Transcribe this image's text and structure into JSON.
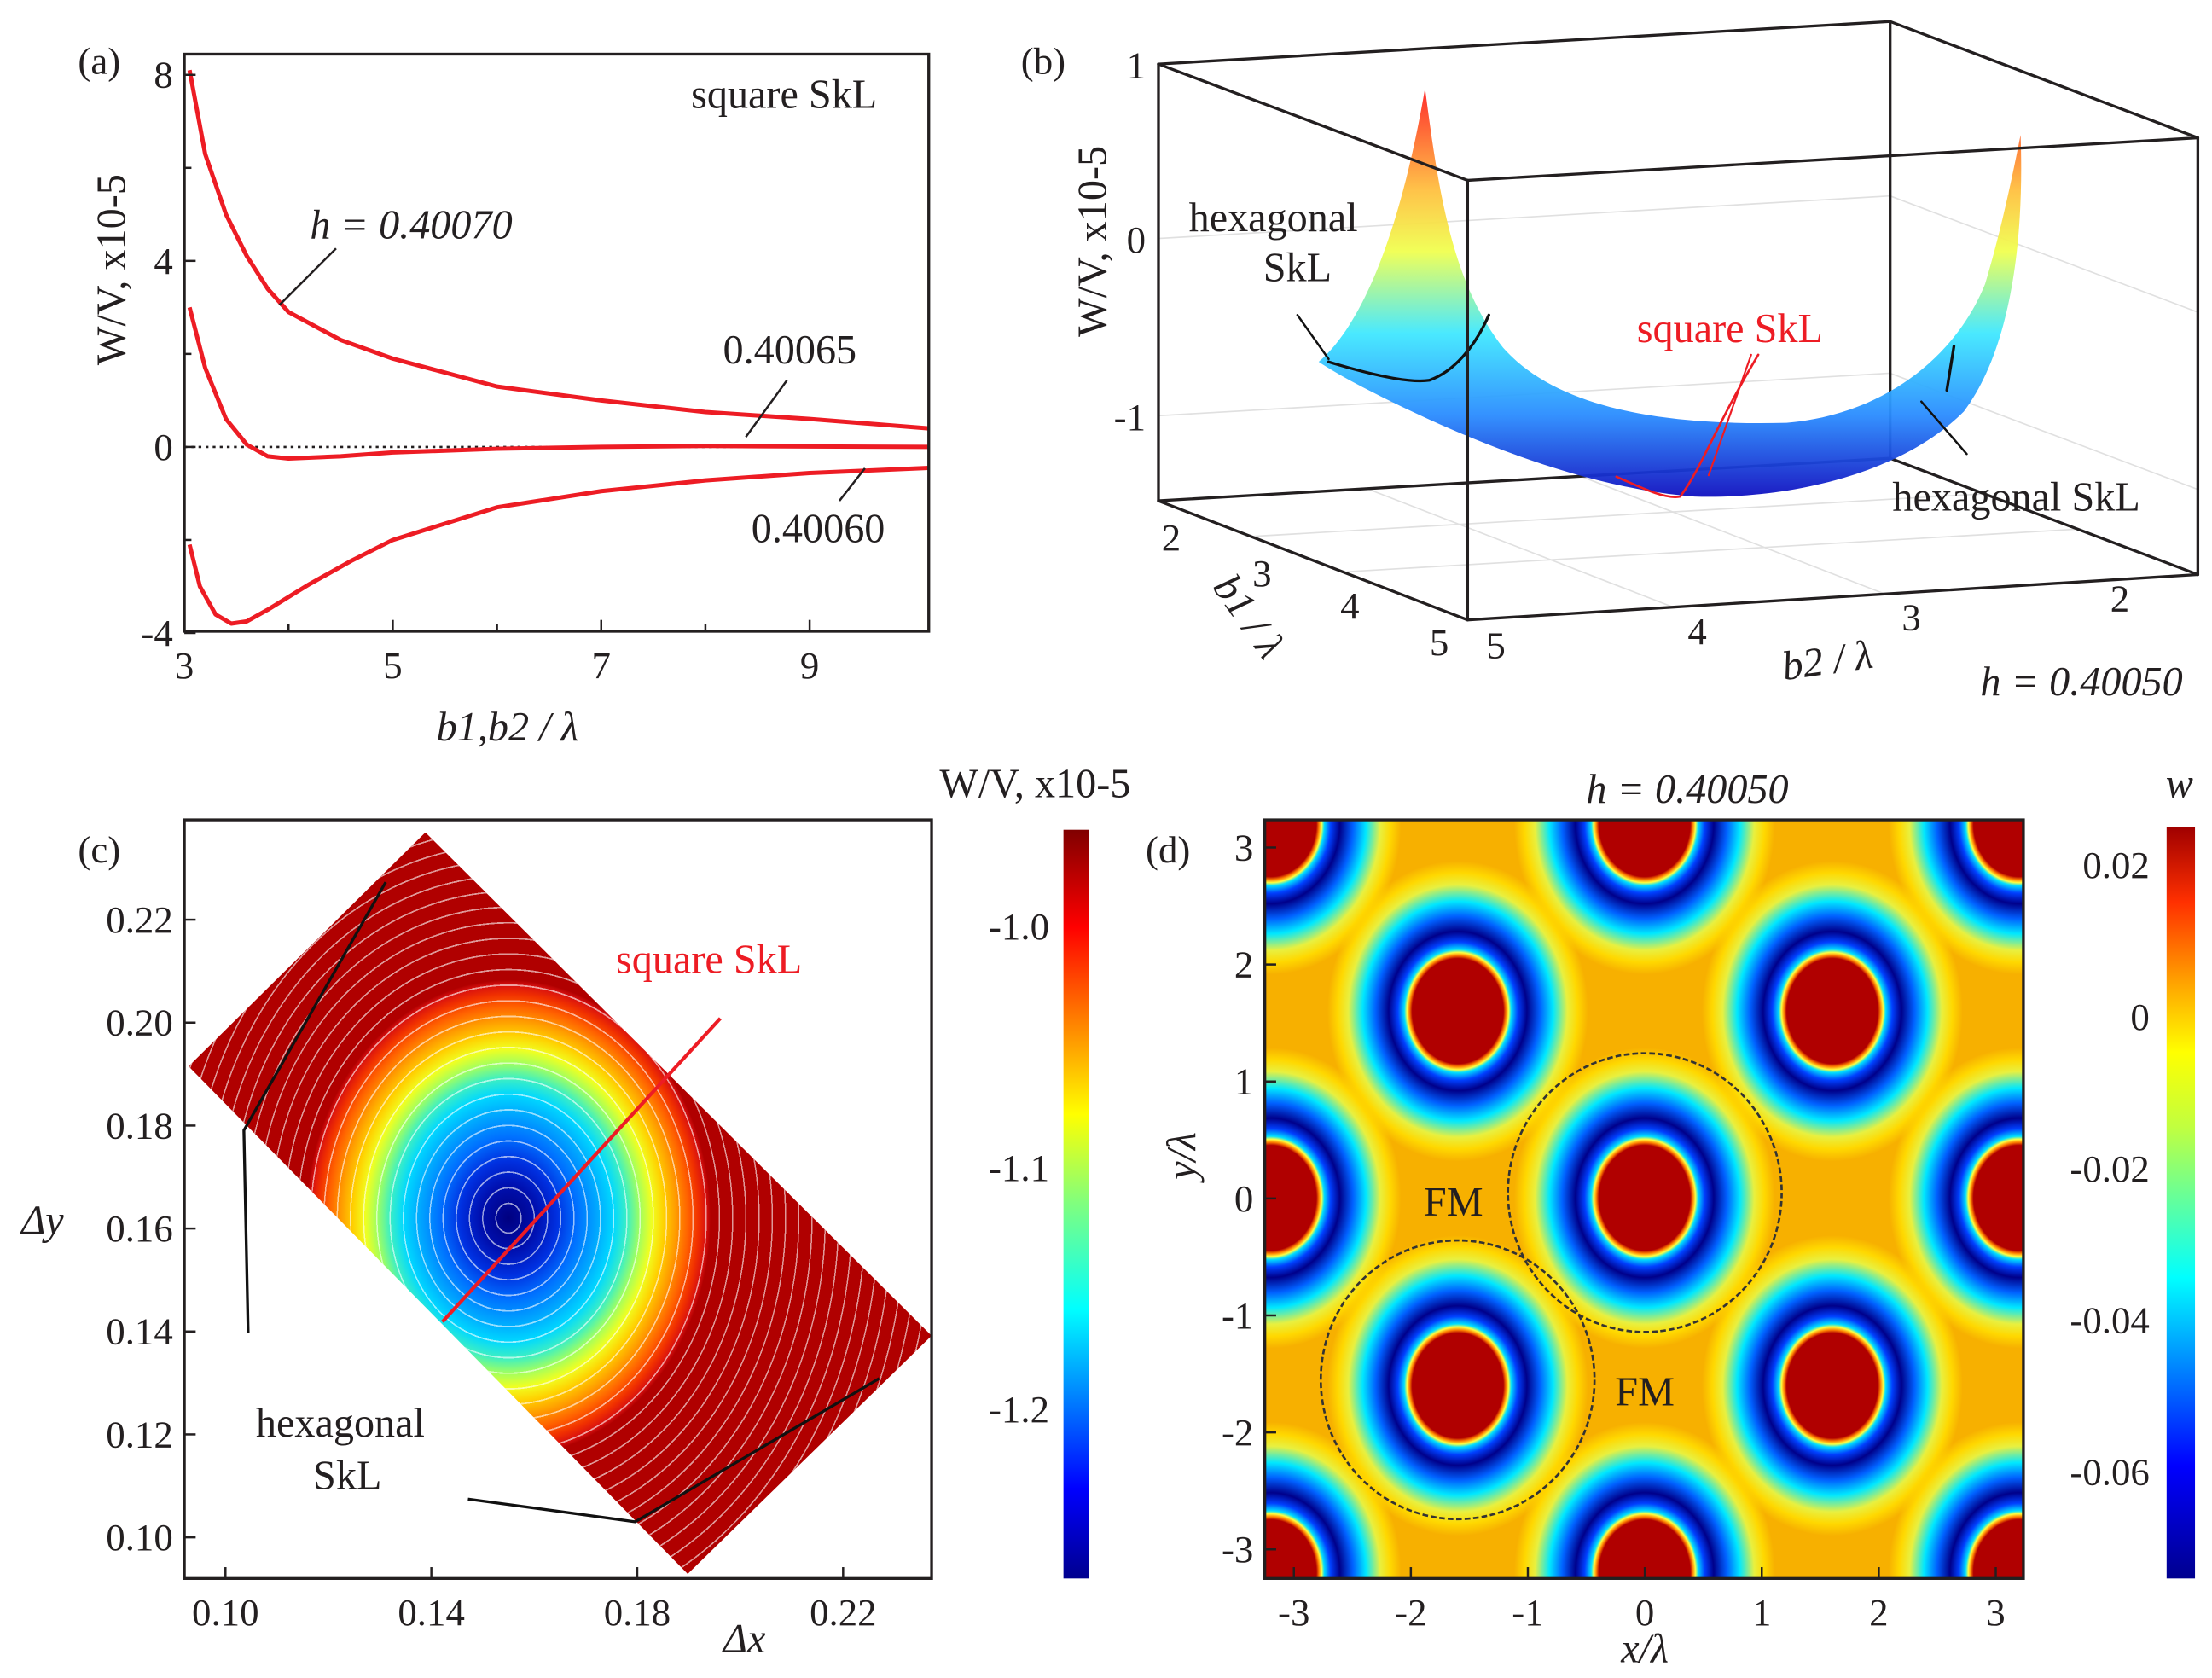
{
  "chart_data": [
    {
      "panel": "(a)",
      "type": "line",
      "annotation": "square SkL",
      "xlabel": "b1,b2 / λ",
      "ylabel": "W/V, x10-5",
      "xlim": [
        3,
        10.14
      ],
      "ylim": [
        -4,
        8.4
      ],
      "xticks": [
        "3",
        "5",
        "7",
        "9"
      ],
      "xtick_values": [
        3,
        5,
        7,
        9
      ],
      "yticks": [
        "8",
        "4",
        "0",
        "-4"
      ],
      "ytick_values": [
        8,
        4,
        0,
        -4
      ],
      "zero_line": "dotted",
      "series": [
        {
          "name": "h = 0.40070",
          "label": "h = 0.40070",
          "color": "#ed1c24",
          "x": [
            3.05,
            3.2,
            3.4,
            3.6,
            3.8,
            4,
            4.5,
            5,
            6,
            7,
            8,
            9,
            10.14
          ],
          "y": [
            8.1,
            6.3,
            5.0,
            4.1,
            3.4,
            2.9,
            2.3,
            1.9,
            1.3,
            1.0,
            0.75,
            0.6,
            0.4
          ]
        },
        {
          "name": "h = 0.40065",
          "label": "0.40065",
          "color": "#ed1c24",
          "x": [
            3.05,
            3.2,
            3.4,
            3.6,
            3.8,
            4,
            4.5,
            5,
            6,
            7,
            8,
            9,
            10.14
          ],
          "y": [
            3.0,
            1.7,
            0.6,
            0.05,
            -0.2,
            -0.25,
            -0.2,
            -0.12,
            -0.04,
            0,
            0.02,
            0.01,
            0
          ]
        },
        {
          "name": "h = 0.40060",
          "label": "0.40060",
          "color": "#ed1c24",
          "x": [
            3.05,
            3.15,
            3.3,
            3.45,
            3.6,
            3.8,
            4.2,
            4.6,
            5,
            6,
            7,
            8,
            9,
            10.14
          ],
          "y": [
            -2.1,
            -3.0,
            -3.6,
            -3.8,
            -3.75,
            -3.5,
            -2.95,
            -2.45,
            -2.0,
            -1.3,
            -0.95,
            -0.72,
            -0.56,
            -0.45
          ]
        }
      ]
    },
    {
      "panel": "(b)",
      "type": "surface",
      "zlabel": "W/V, x10-5",
      "xlabel": "b1 / λ",
      "ylabel": "b2 / λ",
      "zticks": [
        "1",
        "0",
        "-1"
      ],
      "b1_ticks": [
        "2",
        "3",
        "4",
        "5"
      ],
      "b2_ticks": [
        "5",
        "4",
        "3",
        "2"
      ],
      "parameter": "h = 0.40050",
      "annotations": {
        "hex_left_1": "hexagonal",
        "hex_left_2": "SkL",
        "square": "square SkL",
        "hex_right": "hexagonal SkL"
      }
    },
    {
      "panel": "(c)",
      "type": "heatmap",
      "xlabel": "Δx",
      "ylabel": "Δy",
      "xlim": [
        0.092,
        0.237
      ],
      "ylim": [
        0.092,
        0.239
      ],
      "xticks": [
        "0.10",
        "0.14",
        "0.18",
        "0.22"
      ],
      "xtick_values": [
        0.1,
        0.14,
        0.18,
        0.22
      ],
      "yticks": [
        "0.22",
        "0.20",
        "0.18",
        "0.16",
        "0.14",
        "0.12",
        "0.10"
      ],
      "ytick_values": [
        0.22,
        0.2,
        0.18,
        0.16,
        0.14,
        0.12,
        0.1
      ],
      "minimum": [
        0.155,
        0.162
      ],
      "colorbar": {
        "title": "W/V, x10-5",
        "ticks": [
          "-1.0",
          "-1.1",
          "-1.2"
        ],
        "tick_values": [
          -1.0,
          -1.1,
          -1.2
        ],
        "range": [
          -1.27,
          -0.96
        ]
      },
      "annotations": {
        "square": "square SkL",
        "hex_1": "hexagonal",
        "hex_2": "SkL"
      }
    },
    {
      "panel": "(d)",
      "type": "heatmap",
      "title": "h = 0.40050",
      "xlabel": "x/λ",
      "ylabel": "y/λ",
      "xlim": [
        -3.24,
        3.24
      ],
      "ylim": [
        -3.24,
        3.24
      ],
      "xticks": [
        "-3",
        "-2",
        "-1",
        "0",
        "1",
        "2",
        "3"
      ],
      "yticks": [
        "3",
        "2",
        "1",
        "0",
        "-1",
        "-2",
        "-3"
      ],
      "tick_values": [
        -3,
        -2,
        -1,
        0,
        1,
        2,
        3
      ],
      "skyrmion_centers": [
        [
          0,
          0
        ],
        [
          1.6,
          1.6
        ],
        [
          -1.6,
          1.6
        ],
        [
          1.6,
          -1.6
        ],
        [
          -1.6,
          -1.6
        ],
        [
          3.2,
          0
        ],
        [
          -3.2,
          0
        ],
        [
          0,
          3.2
        ],
        [
          0,
          -3.2
        ],
        [
          3.2,
          3.2
        ],
        [
          -3.2,
          3.2
        ],
        [
          3.2,
          -3.2
        ],
        [
          -3.2,
          -3.2
        ]
      ],
      "dashed_circles": [
        [
          0,
          0.05,
          1.17
        ],
        [
          -1.6,
          -1.55,
          1.17
        ]
      ],
      "colorbar": {
        "title": "w",
        "ticks": [
          "0.02",
          "0",
          "-0.02",
          "-0.04",
          "-0.06"
        ],
        "tick_values": [
          0.02,
          0,
          -0.02,
          -0.04,
          -0.06
        ],
        "range": [
          -0.074,
          0.025
        ]
      },
      "annotations": {
        "fm1": "FM",
        "fm2": "FM"
      }
    }
  ]
}
